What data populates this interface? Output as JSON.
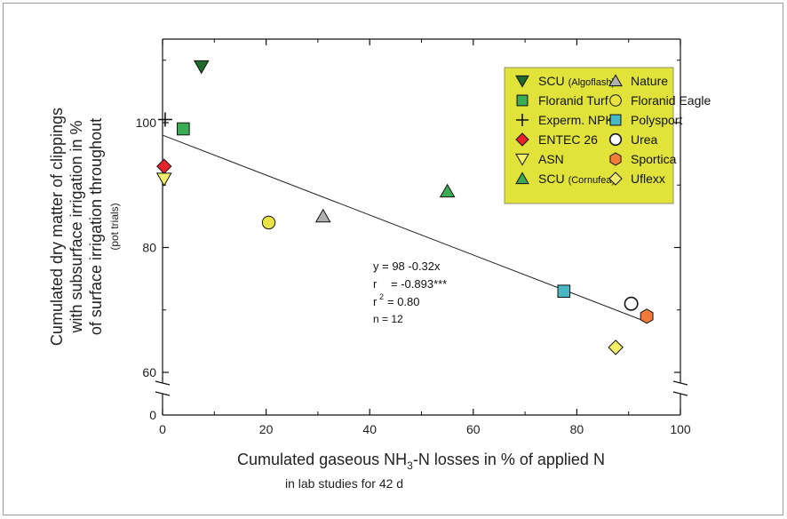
{
  "chart_data": {
    "type": "scatter",
    "xlabel": "Cumulated gaseous NH3-N losses in % of applied N",
    "xlabel_sub": "in lab studies for 42 d",
    "ylabel_lines": [
      "Cumulated dry matter of clippings",
      "with subsurface irrigation in %",
      "of surface irrigation throughout"
    ],
    "ylabel_sub": "(pot trials)",
    "xlim": [
      0,
      100
    ],
    "x_ticks": [
      0,
      20,
      40,
      60,
      80,
      100
    ],
    "y_ticks": [
      0,
      60,
      80,
      100
    ],
    "y_axis_break": [
      0,
      60
    ],
    "grid": false,
    "legend_position": "top-right",
    "legend_bg": "#e1e33a",
    "series": [
      {
        "name": "SCU",
        "name_suffix": "(Algoflash)",
        "marker": "triangle-down",
        "color": "#1f6b2d",
        "x": 7.5,
        "y": 109
      },
      {
        "name": "Floranid Turf",
        "marker": "square",
        "color": "#3cab55",
        "x": 4,
        "y": 99
      },
      {
        "name": "Experm. NPK",
        "marker": "plus",
        "color": "#111111",
        "x": 0.5,
        "y": 100.5
      },
      {
        "name": "ENTEC 26",
        "marker": "diamond",
        "color": "#e8222a",
        "x": 0.3,
        "y": 93
      },
      {
        "name": "ASN",
        "marker": "triangle-down-open",
        "color": "#f4f06a",
        "x": 0.3,
        "y": 91
      },
      {
        "name": "SCU",
        "name_suffix": "(Cornufea)",
        "marker": "triangle-up",
        "color": "#3cab55",
        "x": 55,
        "y": 89
      },
      {
        "name": "Nature",
        "marker": "triangle-up",
        "color": "#b0b0b0",
        "x": 31,
        "y": 85
      },
      {
        "name": "Floranid Eagle",
        "marker": "circle",
        "color": "#e9e344",
        "x": 20.5,
        "y": 84
      },
      {
        "name": "Polysport",
        "marker": "square",
        "color": "#4ab8c4",
        "x": 77.5,
        "y": 73
      },
      {
        "name": "Urea",
        "marker": "circle-open",
        "color": "#ffffff",
        "x": 90.5,
        "y": 71
      },
      {
        "name": "Sportica",
        "marker": "hexagon",
        "color": "#f07b3a",
        "x": 93.5,
        "y": 69
      },
      {
        "name": "Uflexx",
        "marker": "diamond",
        "color": "#f4f06a",
        "x": 87.5,
        "y": 64
      }
    ],
    "legend_order": [
      0,
      6,
      1,
      7,
      2,
      8,
      3,
      9,
      4,
      10,
      5,
      11
    ],
    "regression": {
      "intercept": 98,
      "slope": -0.32,
      "x_range": [
        0,
        93.5
      ]
    },
    "annotation": {
      "eq_line": "y  =  98 -0.32x",
      "r_label": "r",
      "r_value": "=  -0.893***",
      "r2_label": "r",
      "r2_sup": "2",
      "r2_value": "= 0.80",
      "n_line": "n  = 12"
    }
  }
}
